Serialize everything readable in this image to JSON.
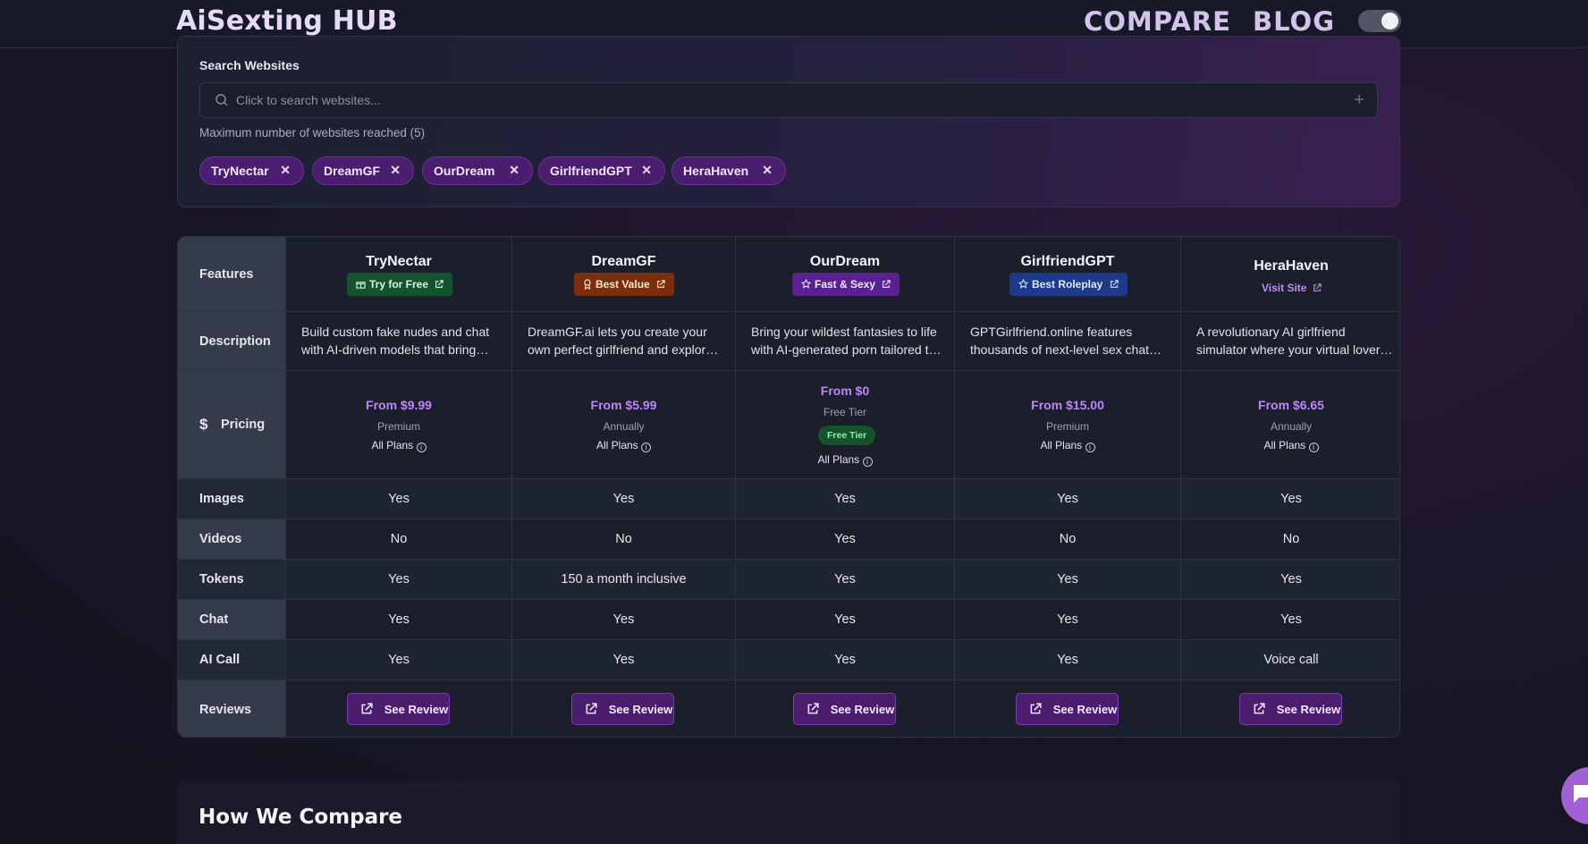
{
  "header": {
    "brand": "AiSexting HUB",
    "nav": {
      "compare": "COMPARE",
      "blog": "BLOG"
    },
    "theme_toggle": "on"
  },
  "search": {
    "label": "Search Websites",
    "placeholder": "Click to search websites...",
    "max_note": "Maximum number of websites reached (5)",
    "chips": [
      "TryNectar",
      "DreamGF",
      "OurDream",
      "GirlfriendGPT",
      "HeraHaven"
    ]
  },
  "table": {
    "row_labels": {
      "features": "Features",
      "description": "Description",
      "pricing": "Pricing",
      "images": "Images",
      "videos": "Videos",
      "tokens": "Tokens",
      "chat": "Chat",
      "ai_call": "AI Call",
      "reviews": "Reviews"
    },
    "currency_icon": "dollar-icon",
    "review_label": "See Review",
    "all_plans_label": "All Plans",
    "sites": [
      {
        "name": "TryNectar",
        "badge": "Try for Free",
        "badge_icon": "gift-icon",
        "badge_color": "#14532d",
        "description": "Build custom fake nudes and chat with AI-driven models that bring your fantasies to life.",
        "price": "From $9.99",
        "plan": "Premium",
        "images": "Yes",
        "videos": "No",
        "tokens": "Yes",
        "chat": "Yes",
        "ai_call": "Yes"
      },
      {
        "name": "DreamGF",
        "badge": "Best Value",
        "badge_icon": "award-icon",
        "badge_color": "#7a2e0e",
        "description": "DreamGF.ai lets you create your own perfect girlfriend and explore your fantasies.",
        "price": "From $5.99",
        "plan": "Annually",
        "images": "Yes",
        "videos": "No",
        "tokens": "150 a month inclusive",
        "chat": "Yes",
        "ai_call": "Yes"
      },
      {
        "name": "OurDream",
        "badge": "Fast & Sexy",
        "badge_icon": "star-icon",
        "badge_color": "#5b2192",
        "description": "Bring your wildest fantasies to life with AI-generated porn tailored to your desires.",
        "price": "From $0",
        "plan": "Free Tier",
        "free_pill": "Free Tier",
        "images": "Yes",
        "videos": "Yes",
        "tokens": "Yes",
        "chat": "Yes",
        "ai_call": "Yes"
      },
      {
        "name": "GirlfriendGPT",
        "badge": "Best Roleplay",
        "badge_icon": "star-icon",
        "badge_color": "#1e3a8a",
        "description": "GPTGirlfriend.online features thousands of next-level sex chat characters.",
        "price": "From $15.00",
        "plan": "Premium",
        "images": "Yes",
        "videos": "No",
        "tokens": "Yes",
        "chat": "Yes",
        "ai_call": "Yes"
      },
      {
        "name": "HeraHaven",
        "visit": "Visit Site",
        "description": "A revolutionary AI girlfriend simulator where your virtual lover awaits.",
        "price": "From $6.65",
        "plan": "Annually",
        "images": "Yes",
        "videos": "No",
        "tokens": "Yes",
        "chat": "Yes",
        "ai_call": "Voice call"
      }
    ]
  },
  "how_we_compare": {
    "title": "How We Compare"
  },
  "colors": {
    "accent": "#c084fc",
    "chip_bg": "#4a1d6e",
    "page_bg": "#15131f"
  }
}
